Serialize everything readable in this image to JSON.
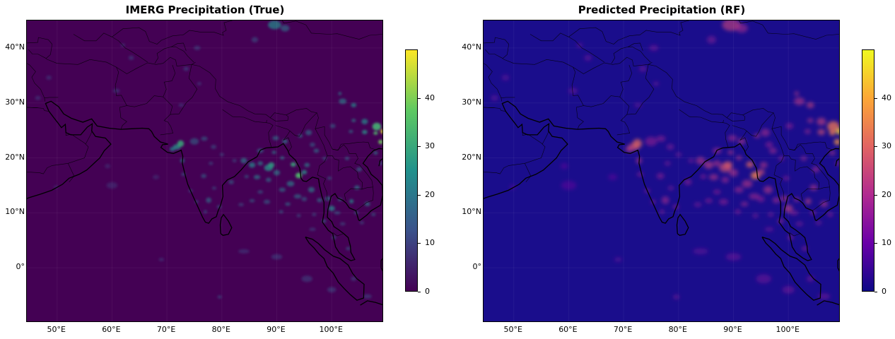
{
  "panels": [
    {
      "title": "IMERG Precipitation (True)",
      "colormap": "viridis",
      "background": "#440154",
      "land_line": "#000000",
      "colorbar_gradient": [
        "#440154",
        "#3b528b",
        "#21918c",
        "#5ec962",
        "#fde725"
      ],
      "colorbar_ticks": [
        "0",
        "10",
        "20",
        "30",
        "40"
      ],
      "colorbar_range": [
        0,
        50
      ]
    },
    {
      "title": "Predicted Precipitation (RF)",
      "colormap": "plasma",
      "background": "#1a0d8c",
      "land_line": "#000000",
      "colorbar_gradient": [
        "#0d0887",
        "#6a00a8",
        "#b12a90",
        "#e16462",
        "#fca636",
        "#f0f921"
      ],
      "colorbar_ticks": [
        "0",
        "10",
        "20",
        "30",
        "40"
      ],
      "colorbar_range": [
        0,
        50
      ]
    }
  ],
  "lat_ticks": [
    "40°N",
    "30°N",
    "20°N",
    "10°N",
    "0°"
  ],
  "lon_ticks": [
    "50°E",
    "60°E",
    "70°E",
    "80°E",
    "90°E",
    "100°E"
  ],
  "extent": {
    "lon": [
      44.5,
      109.5
    ],
    "lat": [
      -10,
      45
    ]
  }
}
